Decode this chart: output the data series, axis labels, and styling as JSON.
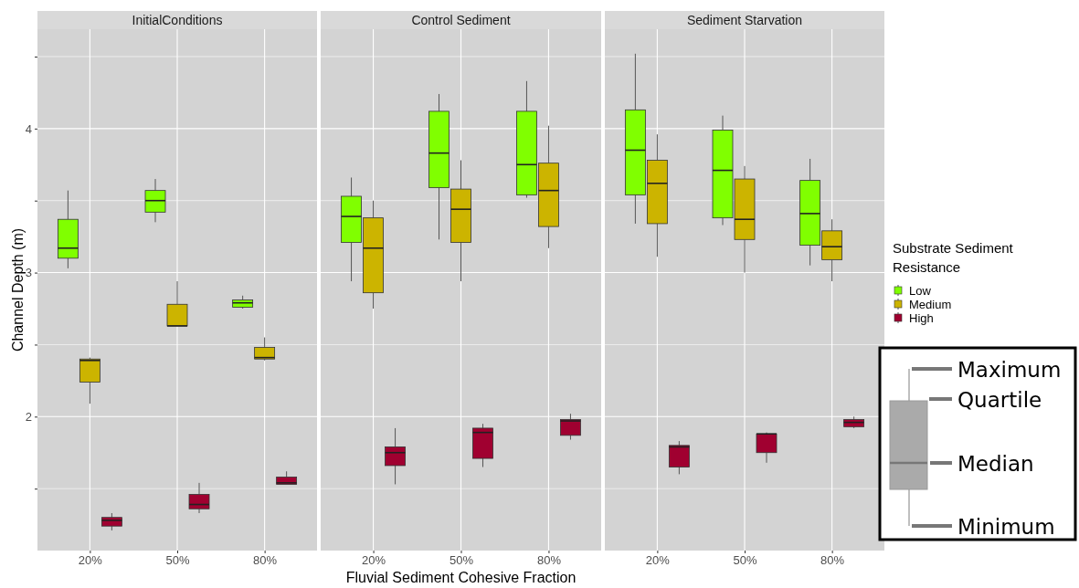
{
  "chart_data": [
    {
      "type": "box",
      "title": "InitialConditions",
      "ylabel": "Channel Depth (m)",
      "categories": [
        "20%",
        "50%",
        "80%"
      ],
      "ylim": [
        1.07,
        4.69
      ],
      "yticks": [
        {
          "value": 1.5,
          "label": null
        },
        2,
        {
          "value": 2.5,
          "label": null
        },
        3,
        {
          "value": 3.5,
          "label": null
        },
        4,
        {
          "value": 4.5,
          "label": null
        }
      ],
      "grid": true,
      "legend": false,
      "series": [
        {
          "color": "#80ff00",
          "boxes": [
            {
              "low": 3.03,
              "q1": 3.1,
              "median": 3.17,
              "q3": 3.37,
              "high": 3.57
            },
            {
              "low": 3.35,
              "q1": 3.42,
              "median": 3.5,
              "q3": 3.57,
              "high": 3.65
            },
            {
              "low": 2.75,
              "q1": 2.76,
              "median": 2.79,
              "q3": 2.81,
              "high": 2.84
            }
          ]
        },
        {
          "color": "#ccb400",
          "boxes": [
            {
              "low": 2.09,
              "q1": 2.24,
              "median": 2.39,
              "q3": 2.4,
              "high": 2.41
            },
            {
              "low": 2.63,
              "q1": 2.63,
              "median": 2.63,
              "q3": 2.78,
              "high": 2.94
            },
            {
              "low": 2.39,
              "q1": 2.4,
              "median": 2.41,
              "q3": 2.48,
              "high": 2.55
            }
          ]
        },
        {
          "color": "#a00030",
          "boxes": [
            {
              "low": 1.21,
              "q1": 1.24,
              "median": 1.28,
              "q3": 1.3,
              "high": 1.33
            },
            {
              "low": 1.33,
              "q1": 1.36,
              "median": 1.39,
              "q3": 1.46,
              "high": 1.54
            },
            {
              "low": 1.53,
              "q1": 1.53,
              "median": 1.54,
              "q3": 1.58,
              "high": 1.62
            }
          ]
        }
      ]
    },
    {
      "type": "box",
      "title": "Control Sediment",
      "xlabel": "Fluvial Sediment Cohesive Fraction",
      "categories": [
        "20%",
        "50%",
        "80%"
      ],
      "ylim": [
        1.07,
        4.69
      ],
      "yticks": [
        {
          "value": 1.5,
          "label": null
        },
        2,
        {
          "value": 2.5,
          "label": null
        },
        3,
        {
          "value": 3.5,
          "label": null
        },
        4,
        {
          "value": 4.5,
          "label": null
        }
      ],
      "tick_labels": "x",
      "grid": true,
      "legend": false,
      "series": [
        {
          "color": "#80ff00",
          "boxes": [
            {
              "low": 2.94,
              "q1": 3.21,
              "median": 3.39,
              "q3": 3.53,
              "high": 3.66
            },
            {
              "low": 3.23,
              "q1": 3.59,
              "median": 3.83,
              "q3": 4.12,
              "high": 4.24
            },
            {
              "low": 3.52,
              "q1": 3.54,
              "median": 3.75,
              "q3": 4.12,
              "high": 4.33
            }
          ]
        },
        {
          "color": "#ccb400",
          "boxes": [
            {
              "low": 2.75,
              "q1": 2.86,
              "median": 3.17,
              "q3": 3.38,
              "high": 3.5
            },
            {
              "low": 2.94,
              "q1": 3.21,
              "median": 3.44,
              "q3": 3.58,
              "high": 3.78
            },
            {
              "low": 3.17,
              "q1": 3.32,
              "median": 3.57,
              "q3": 3.76,
              "high": 4.02
            }
          ]
        },
        {
          "color": "#a00030",
          "boxes": [
            {
              "low": 1.53,
              "q1": 1.66,
              "median": 1.75,
              "q3": 1.79,
              "high": 1.92
            },
            {
              "low": 1.65,
              "q1": 1.71,
              "median": 1.89,
              "q3": 1.92,
              "high": 1.95
            },
            {
              "low": 1.84,
              "q1": 1.87,
              "median": 1.97,
              "q3": 1.98,
              "high": 2.02
            }
          ]
        }
      ]
    },
    {
      "type": "box",
      "title": "Sediment Starvation",
      "categories": [
        "20%",
        "50%",
        "80%"
      ],
      "ylim": [
        1.07,
        4.69
      ],
      "yticks": [
        {
          "value": 1.5,
          "label": null
        },
        2,
        {
          "value": 2.5,
          "label": null
        },
        3,
        {
          "value": 3.5,
          "label": null
        },
        4,
        {
          "value": 4.5,
          "label": null
        }
      ],
      "tick_labels": "x",
      "grid": true,
      "legend": "right",
      "legend_title": "Substrate Sediment Resistance",
      "annotations": [
        "Maximum",
        "Quartile",
        "Median",
        "Minimum"
      ],
      "series": [
        {
          "name": "Low",
          "color": "#80ff00",
          "boxes": [
            {
              "low": 3.34,
              "q1": 3.54,
              "median": 3.85,
              "q3": 4.13,
              "high": 4.52
            },
            {
              "low": 3.33,
              "q1": 3.38,
              "median": 3.71,
              "q3": 3.99,
              "high": 4.09
            },
            {
              "low": 3.05,
              "q1": 3.19,
              "median": 3.41,
              "q3": 3.64,
              "high": 3.79
            }
          ]
        },
        {
          "name": "Medium",
          "color": "#ccb400",
          "boxes": [
            {
              "low": 3.11,
              "q1": 3.34,
              "median": 3.62,
              "q3": 3.78,
              "high": 3.96
            },
            {
              "low": 3.0,
              "q1": 3.23,
              "median": 3.37,
              "q3": 3.65,
              "high": 3.74
            },
            {
              "low": 2.94,
              "q1": 3.09,
              "median": 3.18,
              "q3": 3.29,
              "high": 3.37
            }
          ]
        },
        {
          "name": "High",
          "color": "#a00030",
          "boxes": [
            {
              "low": 1.6,
              "q1": 1.65,
              "median": 1.79,
              "q3": 1.8,
              "high": 1.83
            },
            {
              "low": 1.68,
              "q1": 1.75,
              "median": 1.88,
              "q3": 1.88,
              "high": 1.89
            },
            {
              "low": 1.92,
              "q1": 1.93,
              "median": 1.96,
              "q3": 1.98,
              "high": 2.0
            }
          ]
        }
      ]
    }
  ]
}
